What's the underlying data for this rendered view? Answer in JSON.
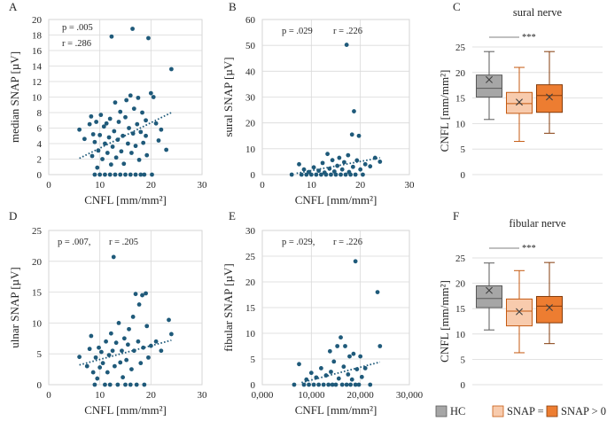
{
  "colors": {
    "point": "#1f5a7a",
    "trend": "#1f5a7a",
    "grid": "#d9d9d9",
    "axis": "#bfbfbf",
    "box_hc": "#a6a6a6",
    "box_snap0": "#f8cbad",
    "box_snap_pos": "#ed7d31",
    "box_edge_hc": "#595959",
    "box_edge_snap0": "#c55a11",
    "box_edge_snap_pos": "#843c0c"
  },
  "legend": {
    "items": [
      {
        "label": "HC",
        "color_key": "box_hc",
        "edge_key": "box_edge_hc"
      },
      {
        "label": "SNAP = 0",
        "color_key": "box_snap0",
        "edge_key": "box_edge_snap0"
      },
      {
        "label": "SNAP > 0",
        "color_key": "box_snap_pos",
        "edge_key": "box_edge_snap_pos"
      }
    ]
  },
  "chart_data": [
    {
      "id": "A",
      "panel": "A",
      "type": "scatter",
      "title": "",
      "xlabel": "CNFL [mm/mm²]",
      "ylabel": "median SNAP [µV]",
      "xlim": [
        0,
        30
      ],
      "ylim": [
        0,
        20
      ],
      "xticks": [
        0,
        10,
        20,
        30
      ],
      "yticks": [
        0,
        2,
        4,
        6,
        8,
        10,
        12,
        14,
        16,
        18,
        20
      ],
      "xtick_labels": [
        "0",
        "10",
        "20",
        "30"
      ],
      "ytick_labels": [
        "0",
        "2",
        "4",
        "6",
        "8",
        "10",
        "12",
        "14",
        "16",
        "18",
        "20"
      ],
      "stats": [
        "p = .005",
        "r = .286"
      ],
      "trend": [
        [
          6,
          2.1
        ],
        [
          24,
          8.0
        ]
      ],
      "points": [
        [
          6,
          5.8
        ],
        [
          7,
          4.6
        ],
        [
          8,
          6.5
        ],
        [
          8.3,
          7.5
        ],
        [
          8.5,
          2.4
        ],
        [
          8.7,
          5.2
        ],
        [
          9,
          0
        ],
        [
          9,
          4.2
        ],
        [
          9.3,
          6.8
        ],
        [
          9.5,
          0.9
        ],
        [
          9.7,
          3.1
        ],
        [
          10,
          0
        ],
        [
          10,
          5.1
        ],
        [
          10.2,
          7.7
        ],
        [
          10.5,
          2.0
        ],
        [
          10.8,
          6.2
        ],
        [
          11,
          0
        ],
        [
          11,
          4.0
        ],
        [
          11.3,
          6.6
        ],
        [
          11.5,
          2.8
        ],
        [
          11.8,
          4.8
        ],
        [
          12,
          0
        ],
        [
          12,
          7.2
        ],
        [
          12.2,
          1.3
        ],
        [
          12.3,
          17.8
        ],
        [
          12.5,
          3.6
        ],
        [
          12.8,
          5.6
        ],
        [
          13,
          0
        ],
        [
          13,
          9.3
        ],
        [
          13.2,
          2.2
        ],
        [
          13.5,
          4.5
        ],
        [
          13.7,
          6.8
        ],
        [
          14,
          0
        ],
        [
          14,
          8.1
        ],
        [
          14.2,
          3.0
        ],
        [
          14.5,
          5.0
        ],
        [
          14.7,
          1.4
        ],
        [
          15,
          0
        ],
        [
          15,
          7.4
        ],
        [
          15.2,
          9.6
        ],
        [
          15.5,
          4.0
        ],
        [
          15.7,
          6.0
        ],
        [
          16,
          0
        ],
        [
          16,
          10.2
        ],
        [
          16.2,
          2.8
        ],
        [
          16.4,
          18.8
        ],
        [
          16.5,
          5.3
        ],
        [
          16.7,
          8.5
        ],
        [
          17,
          0
        ],
        [
          17,
          3.7
        ],
        [
          17.3,
          6.5
        ],
        [
          17.5,
          9.9
        ],
        [
          17.7,
          1.9
        ],
        [
          18,
          0
        ],
        [
          18,
          5.5
        ],
        [
          18.3,
          8.0
        ],
        [
          18.5,
          4.1
        ],
        [
          18.7,
          0
        ],
        [
          19,
          7.0
        ],
        [
          19.2,
          2.5
        ],
        [
          19.5,
          17.6
        ],
        [
          19,
          5.0
        ],
        [
          20,
          10.5
        ],
        [
          20.2,
          0
        ],
        [
          20.5,
          10.0
        ],
        [
          21,
          6.6
        ],
        [
          21.5,
          4.4
        ],
        [
          22,
          5.8
        ],
        [
          23,
          3.2
        ],
        [
          24,
          13.6
        ]
      ]
    },
    {
      "id": "B",
      "panel": "B",
      "type": "scatter",
      "title": "",
      "xlabel": "CNFL [mm/mm²]",
      "ylabel": "sural SNAP [µV]",
      "xlim": [
        0,
        30
      ],
      "ylim": [
        0,
        60
      ],
      "xticks": [
        0,
        10,
        20,
        30
      ],
      "yticks": [
        0,
        10,
        20,
        30,
        40,
        50,
        60
      ],
      "xtick_labels": [
        "0",
        "10",
        "20",
        "30"
      ],
      "ytick_labels": [
        "0",
        "10",
        "20",
        "30",
        "40",
        "50",
        "60"
      ],
      "stats": [
        "p = .029",
        "r = .226"
      ],
      "trend": [
        [
          7,
          0.5
        ],
        [
          24,
          6.5
        ]
      ],
      "points": [
        [
          6,
          0
        ],
        [
          7.5,
          4.0
        ],
        [
          8,
          0
        ],
        [
          8.5,
          2.0
        ],
        [
          9,
          0
        ],
        [
          9.5,
          1.0
        ],
        [
          10,
          0
        ],
        [
          10.5,
          2.8
        ],
        [
          11,
          0
        ],
        [
          11.5,
          1.5
        ],
        [
          12,
          0
        ],
        [
          12.3,
          4.5
        ],
        [
          12.7,
          0.8
        ],
        [
          13,
          0
        ],
        [
          13.3,
          8.0
        ],
        [
          13.7,
          2.3
        ],
        [
          14,
          0
        ],
        [
          14.3,
          5.6
        ],
        [
          14.7,
          1.2
        ],
        [
          15,
          0
        ],
        [
          15.3,
          3.4
        ],
        [
          15.7,
          6.5
        ],
        [
          16,
          0
        ],
        [
          16.3,
          2.0
        ],
        [
          16.7,
          4.8
        ],
        [
          17,
          0
        ],
        [
          17.2,
          50.2
        ],
        [
          17.5,
          7.5
        ],
        [
          17.7,
          1.0
        ],
        [
          18,
          0
        ],
        [
          18.3,
          15.5
        ],
        [
          18.5,
          3.0
        ],
        [
          18.7,
          24.5
        ],
        [
          19,
          0
        ],
        [
          19.3,
          5.5
        ],
        [
          19.7,
          15.0
        ],
        [
          20,
          2.0
        ],
        [
          20.5,
          0
        ],
        [
          21,
          4.0
        ],
        [
          22,
          3.2
        ],
        [
          23,
          6.5
        ],
        [
          24,
          5.0
        ]
      ]
    },
    {
      "id": "C",
      "panel": "C",
      "type": "box",
      "title": "sural nerve",
      "xlabel": "",
      "ylabel": "CNFL [mm/mm²]",
      "ylim": [
        0,
        25
      ],
      "yticks": [
        0,
        5,
        10,
        15,
        20,
        25
      ],
      "ytick_labels": [
        "0",
        "5",
        "10",
        "15",
        "20",
        "25"
      ],
      "significance": "***",
      "boxes": [
        {
          "name": "HC",
          "color_key": "box_hc",
          "edge_key": "box_edge_hc",
          "min": 10.8,
          "q1": 15.2,
          "median": 16.9,
          "q3": 19.5,
          "max": 24.1,
          "mean": 18.6
        },
        {
          "name": "SNAP = 0",
          "color_key": "box_snap0",
          "edge_key": "box_edge_snap0",
          "min": 6.5,
          "q1": 12.0,
          "median": 13.9,
          "q3": 16.1,
          "max": 21.0,
          "mean": 14.2
        },
        {
          "name": "SNAP > 0",
          "color_key": "box_snap_pos",
          "edge_key": "box_edge_snap_pos",
          "min": 8.1,
          "q1": 12.2,
          "median": 15.5,
          "q3": 17.6,
          "max": 24.1,
          "mean": 15.2
        }
      ]
    },
    {
      "id": "D",
      "panel": "D",
      "type": "scatter",
      "title": "",
      "xlabel": "CNFL [mm/mm²]",
      "ylabel": "ulnar SNAP [µV]",
      "xlim": [
        0,
        30
      ],
      "ylim": [
        0,
        25
      ],
      "xticks": [
        0,
        10,
        20,
        30
      ],
      "yticks": [
        0,
        5,
        10,
        15,
        20,
        25
      ],
      "xtick_labels": [
        "0",
        "10",
        "20",
        "30"
      ],
      "ytick_labels": [
        "0",
        "5",
        "10",
        "15",
        "20",
        "25"
      ],
      "stats": [
        "p = .007,",
        "r = .205"
      ],
      "trend": [
        [
          6,
          3.2
        ],
        [
          24,
          7.2
        ]
      ],
      "points": [
        [
          6,
          4.5
        ],
        [
          7.5,
          3.0
        ],
        [
          8,
          5.8
        ],
        [
          8.3,
          7.9
        ],
        [
          8.7,
          2.0
        ],
        [
          9,
          0
        ],
        [
          9.2,
          4.4
        ],
        [
          9.5,
          1.0
        ],
        [
          9.8,
          6.0
        ],
        [
          10,
          2.8
        ],
        [
          10.3,
          5.3
        ],
        [
          10.6,
          3.5
        ],
        [
          11,
          0
        ],
        [
          11.2,
          7.0
        ],
        [
          11.5,
          2.0
        ],
        [
          11.8,
          4.8
        ],
        [
          12,
          0
        ],
        [
          12.2,
          8.3
        ],
        [
          12.5,
          5.5
        ],
        [
          12.7,
          20.7
        ],
        [
          12.9,
          3.0
        ],
        [
          13.2,
          6.8
        ],
        [
          13.5,
          0
        ],
        [
          13.7,
          10.0
        ],
        [
          14,
          3.6
        ],
        [
          14.3,
          5.5
        ],
        [
          14.5,
          1.2
        ],
        [
          14.8,
          7.5
        ],
        [
          15,
          0
        ],
        [
          15.2,
          4.0
        ],
        [
          15.5,
          6.5
        ],
        [
          15.7,
          9.0
        ],
        [
          16,
          0
        ],
        [
          16.2,
          2.5
        ],
        [
          16.5,
          11.0
        ],
        [
          16.7,
          5.5
        ],
        [
          17,
          14.7
        ],
        [
          17.2,
          0
        ],
        [
          17.5,
          7.0
        ],
        [
          17.7,
          13.0
        ],
        [
          18,
          3.5
        ],
        [
          18.3,
          14.5
        ],
        [
          18.5,
          6.0
        ],
        [
          18.7,
          0
        ],
        [
          19,
          14.8
        ],
        [
          19.2,
          9.5
        ],
        [
          19.5,
          4.4
        ],
        [
          20,
          6.3
        ],
        [
          21,
          7.0
        ],
        [
          22,
          5.5
        ],
        [
          23.5,
          10.5
        ],
        [
          24,
          8.2
        ]
      ]
    },
    {
      "id": "E",
      "panel": "E",
      "type": "scatter",
      "title": "",
      "xlabel": "CNFL [mm/mm²]",
      "ylabel": "fibular SNAP [µV]",
      "xlim": [
        0,
        30000
      ],
      "ylim": [
        0,
        30
      ],
      "xticks": [
        0,
        10000,
        20000,
        30000
      ],
      "yticks": [
        0,
        5,
        10,
        15,
        20,
        25,
        30
      ],
      "xtick_labels": [
        "0,000",
        "10,000",
        "20,000",
        "30,000"
      ],
      "ytick_labels": [
        "0",
        "5",
        "10",
        "15",
        "20",
        "25",
        "30"
      ],
      "stats": [
        "p = .029,",
        "r = .226"
      ],
      "trend": [
        [
          8000,
          0.4
        ],
        [
          24000,
          4.4
        ]
      ],
      "points": [
        [
          6500,
          0
        ],
        [
          7500,
          4.0
        ],
        [
          8500,
          0
        ],
        [
          9000,
          1.0
        ],
        [
          9500,
          0
        ],
        [
          10000,
          2.3
        ],
        [
          10500,
          0
        ],
        [
          11000,
          1.4
        ],
        [
          11500,
          0
        ],
        [
          12000,
          3.2
        ],
        [
          12500,
          0
        ],
        [
          13000,
          1.8
        ],
        [
          13500,
          0
        ],
        [
          13800,
          6.5
        ],
        [
          14000,
          2.5
        ],
        [
          14300,
          0
        ],
        [
          14600,
          4.5
        ],
        [
          15000,
          0
        ],
        [
          15300,
          7.5
        ],
        [
          15600,
          1.2
        ],
        [
          16000,
          9.2
        ],
        [
          16300,
          0
        ],
        [
          16600,
          3.5
        ],
        [
          16900,
          7.5
        ],
        [
          17200,
          0
        ],
        [
          17500,
          2.0
        ],
        [
          17800,
          5.5
        ],
        [
          18000,
          0
        ],
        [
          18300,
          1.0
        ],
        [
          18600,
          6.0
        ],
        [
          19000,
          0
        ],
        [
          19000,
          24.0
        ],
        [
          19300,
          3.0
        ],
        [
          19700,
          0
        ],
        [
          20000,
          5.5
        ],
        [
          20300,
          1.5
        ],
        [
          21000,
          3.2
        ],
        [
          22000,
          0
        ],
        [
          23500,
          18.0
        ],
        [
          24000,
          7.5
        ]
      ]
    },
    {
      "id": "F",
      "panel": "F",
      "type": "box",
      "title": "fibular nerve",
      "xlabel": "",
      "ylabel": "CNFL [mm/mm²]",
      "ylim": [
        0,
        25
      ],
      "yticks": [
        0,
        5,
        10,
        15,
        20,
        25
      ],
      "ytick_labels": [
        "0",
        "5",
        "10",
        "15",
        "20",
        "25"
      ],
      "significance": "***",
      "boxes": [
        {
          "name": "HC",
          "color_key": "box_hc",
          "edge_key": "box_edge_hc",
          "min": 10.8,
          "q1": 15.2,
          "median": 17.0,
          "q3": 19.5,
          "max": 24.0,
          "mean": 18.6
        },
        {
          "name": "SNAP = 0",
          "color_key": "box_snap0",
          "edge_key": "box_edge_snap0",
          "min": 6.3,
          "q1": 11.6,
          "median": 14.5,
          "q3": 16.9,
          "max": 22.5,
          "mean": 14.4
        },
        {
          "name": "SNAP > 0",
          "color_key": "box_snap_pos",
          "edge_key": "box_edge_snap_pos",
          "min": 8.1,
          "q1": 12.2,
          "median": 15.5,
          "q3": 17.4,
          "max": 24.1,
          "mean": 15.2
        }
      ]
    }
  ]
}
